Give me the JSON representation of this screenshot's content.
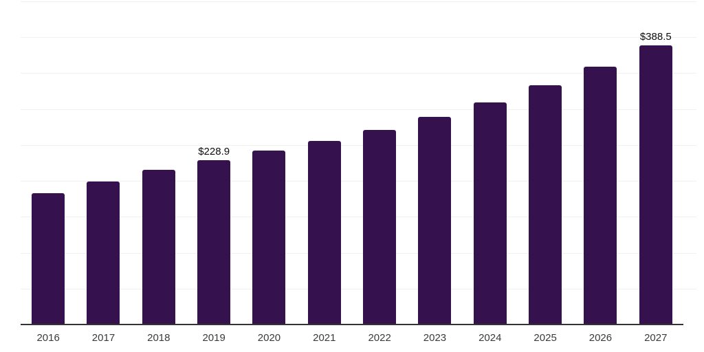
{
  "chart_data": {
    "type": "bar",
    "title": "",
    "xlabel": "",
    "ylabel": "",
    "categories": [
      "2016",
      "2017",
      "2018",
      "2019",
      "2020",
      "2021",
      "2022",
      "2023",
      "2024",
      "2025",
      "2026",
      "2027"
    ],
    "values": [
      183,
      199,
      215,
      228.9,
      242,
      256,
      271,
      289,
      309,
      333,
      359,
      388.5
    ],
    "point_labels": [
      "",
      "",
      "",
      "$228.9",
      "",
      "",
      "",
      "",
      "",
      "",
      "",
      "$388.5"
    ],
    "ylim": [
      0,
      450
    ],
    "grid_step": 50,
    "grid": true,
    "legend": "none",
    "y_tick_labels_shown": false,
    "colors": {
      "bar": "#35124e",
      "gridline": "#f0f0f0",
      "axis_line": "#333333",
      "tick_text": "#3a3a3a",
      "value_label_text": "#0c0c0c",
      "background": "#ffffff"
    }
  }
}
